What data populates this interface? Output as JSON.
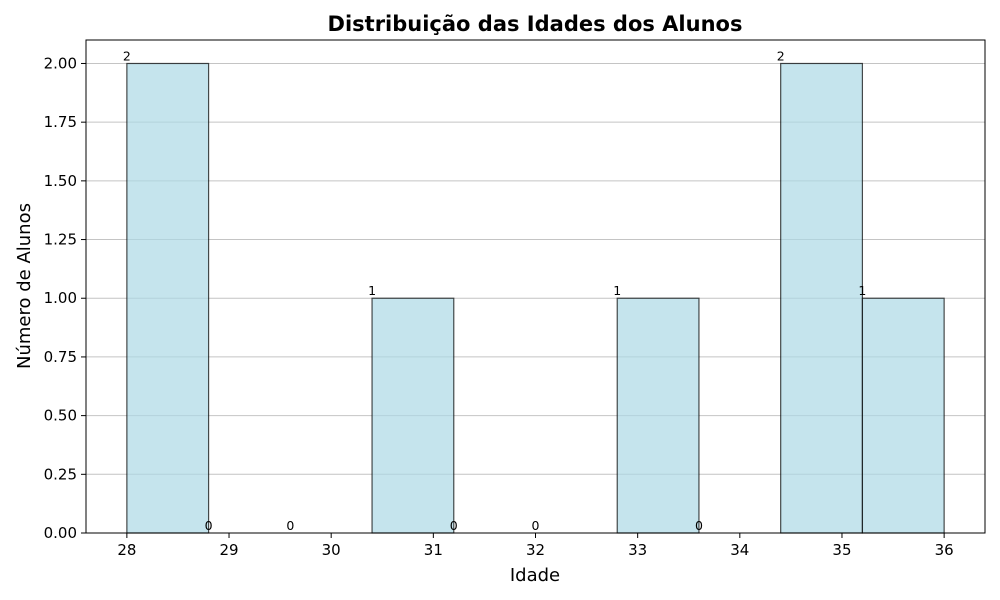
{
  "chart_data": {
    "type": "bar",
    "title": "Distribuição das Idades dos Alunos",
    "xlabel": "Idade",
    "ylabel": "Número de Alunos",
    "bins": [
      {
        "start": 28.0,
        "end": 28.8,
        "value": 2
      },
      {
        "start": 28.8,
        "end": 29.6,
        "value": 0
      },
      {
        "start": 29.6,
        "end": 30.4,
        "value": 0
      },
      {
        "start": 30.4,
        "end": 31.2,
        "value": 1
      },
      {
        "start": 31.2,
        "end": 32.0,
        "value": 0
      },
      {
        "start": 32.0,
        "end": 32.8,
        "value": 0
      },
      {
        "start": 32.8,
        "end": 33.6,
        "value": 1
      },
      {
        "start": 33.6,
        "end": 34.4,
        "value": 0
      },
      {
        "start": 34.4,
        "end": 35.2,
        "value": 2
      },
      {
        "start": 35.2,
        "end": 36.0,
        "value": 1
      }
    ],
    "bar_labels": [
      "2",
      "0",
      "0",
      "1",
      "0",
      "0",
      "1",
      "0",
      "2",
      "1"
    ],
    "xlim": [
      27.6,
      36.4
    ],
    "ylim": [
      0,
      2.1
    ],
    "x_ticks": [
      28,
      29,
      30,
      31,
      32,
      33,
      34,
      35,
      36
    ],
    "x_tick_labels": [
      "28",
      "29",
      "30",
      "31",
      "32",
      "33",
      "34",
      "35",
      "36"
    ],
    "y_ticks": [
      0,
      0.25,
      0.5,
      0.75,
      1.0,
      1.25,
      1.5,
      1.75,
      2.0
    ],
    "y_tick_labels": [
      "0.00",
      "0.25",
      "0.50",
      "0.75",
      "1.00",
      "1.25",
      "1.50",
      "1.75",
      "2.00"
    ],
    "grid": {
      "axis": "y",
      "on": true
    },
    "colors": {
      "bar_fill": "#add8e6",
      "bar_edge": "#000000",
      "grid": "#c4c4c4"
    }
  }
}
